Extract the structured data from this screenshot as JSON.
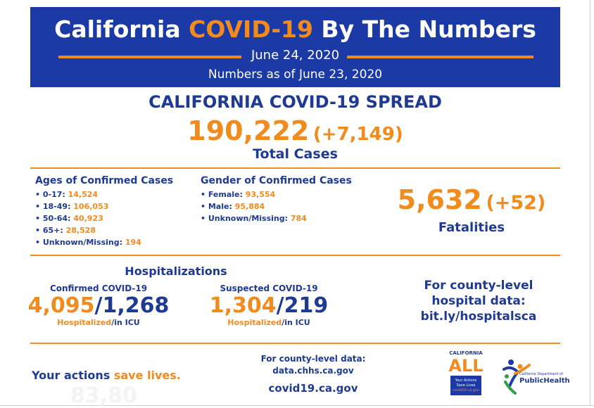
{
  "header": {
    "title_prefix": "California ",
    "title_highlight": "COVID-19",
    "title_suffix": " By The Numbers",
    "date": "June 24, 2020",
    "as_of": "Numbers as of June 23, 2020",
    "colors": {
      "banner": "#1b3aa6",
      "accent": "#f28b1e",
      "text_blue": "#1f3a93"
    }
  },
  "spread": {
    "title": "CALIFORNIA COVID-19 SPREAD",
    "total_cases": "190,222",
    "total_increase": "(+7,149)",
    "total_label": "Total Cases"
  },
  "ages": {
    "title": "Ages of Confirmed Cases",
    "items": [
      {
        "label": "• 0-17: ",
        "value": "14,524"
      },
      {
        "label": "• 18-49: ",
        "value": "106,053"
      },
      {
        "label": "• 50-64: ",
        "value": "40,923"
      },
      {
        "label": "• 65+: ",
        "value": "28,528"
      },
      {
        "label": "• Unknown/Missing: ",
        "value": "194"
      }
    ]
  },
  "gender": {
    "title": "Gender of Confirmed Cases",
    "items": [
      {
        "label": "• Female: ",
        "value": "93,554"
      },
      {
        "label": "• Male: ",
        "value": "95,884"
      },
      {
        "label": "• Unknown/Missing: ",
        "value": "784"
      }
    ]
  },
  "fatalities": {
    "count": "5,632",
    "increase": "(+52)",
    "label": "Fatalities"
  },
  "hospitalizations": {
    "title": "Hospitalizations",
    "confirmed": {
      "label": "Confirmed COVID-19",
      "hospitalized": "4,095",
      "icu": "1,268",
      "caption_hosp": "Hospitalized",
      "caption_icu": "/in ICU"
    },
    "suspected": {
      "label": "Suspected COVID-19",
      "hospitalized": "1,304",
      "icu": "219",
      "caption_hosp": "Hospitalized",
      "caption_icu": "/in ICU"
    },
    "county_lines": [
      "For county-level",
      "hospital data:",
      "bit.ly/hospitalsca"
    ]
  },
  "footer": {
    "actions_prefix": "Your actions ",
    "actions_highlight": "save lives.",
    "ghost_number": "83,80",
    "county_label": "For county-level data:",
    "county_url": "data.chhs.ca.gov",
    "covid_url": "covid19.ca.gov",
    "ca_logo": {
      "small": "CALIFORNIA",
      "big": "ALL",
      "tagline": [
        "Your Actions",
        "Save Lives",
        "covid19.ca.gov"
      ]
    },
    "cdph_logo": {
      "line1": "California Department of",
      "line2": "PublicHealth",
      "icon": "people-figures-icon"
    }
  }
}
